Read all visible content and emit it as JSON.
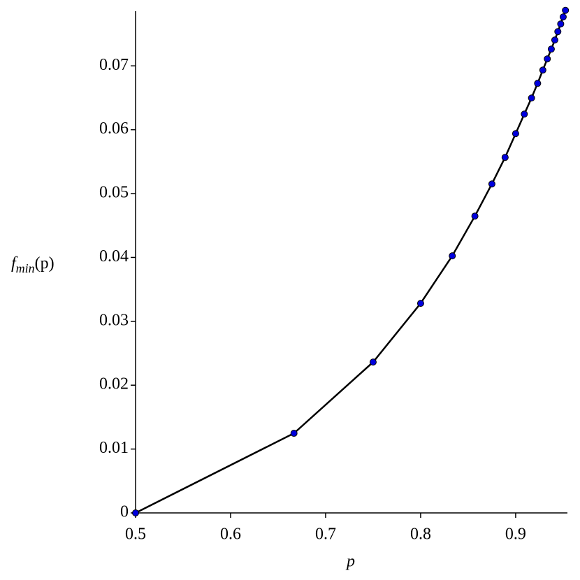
{
  "chart_data": {
    "type": "line",
    "xlabel": "p",
    "ylabel": {
      "base": "f",
      "sub": "min",
      "arg": "(p)"
    },
    "x": [
      0.5,
      0.6667,
      0.75,
      0.8,
      0.8333,
      0.8571,
      0.875,
      0.8889,
      0.9,
      0.9091,
      0.9167,
      0.9231,
      0.9286,
      0.9333,
      0.9375,
      0.9412,
      0.9444,
      0.9474,
      0.95,
      0.9524
    ],
    "series": [
      {
        "name": "f_min",
        "color": "#000000",
        "marker_color": "#0000dd",
        "values": [
          0,
          0.01247,
          0.02362,
          0.03281,
          0.04025,
          0.04648,
          0.05151,
          0.05567,
          0.05939,
          0.06245,
          0.06497,
          0.06726,
          0.06934,
          0.07109,
          0.07262,
          0.07405,
          0.07536,
          0.07656,
          0.07766,
          0.0787
        ]
      }
    ],
    "xlim": [
      0.5,
      0.953
    ],
    "ylim": [
      0,
      0.079
    ],
    "xticks": [
      0.5,
      0.6,
      0.7,
      0.8,
      0.9
    ],
    "yticks": [
      0,
      0.01,
      0.02,
      0.03,
      0.04,
      0.05,
      0.06,
      0.07
    ]
  }
}
